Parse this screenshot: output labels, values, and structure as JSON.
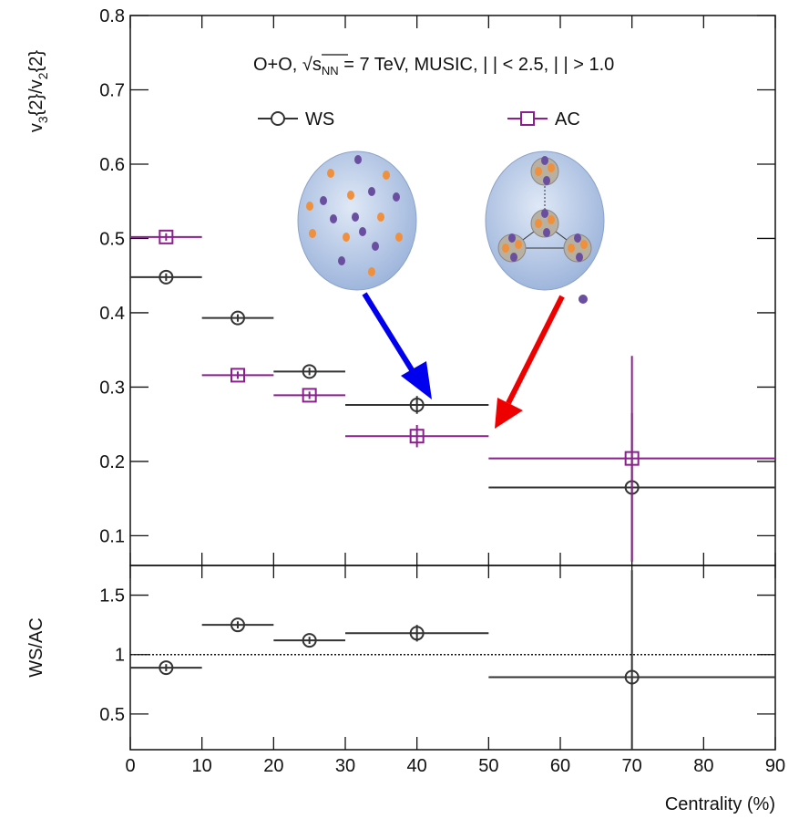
{
  "chart_data": [
    {
      "type": "scatter",
      "ylabel_parts": [
        {
          "text": "v"
        },
        {
          "text": "3",
          "sub": true
        },
        {
          "text": "{2}/v"
        },
        {
          "text": "2",
          "sub": true
        },
        {
          "text": "{2}"
        }
      ],
      "annotation": {
        "before": "O+O, √",
        "s": "s",
        "sub": "NN",
        "after": " = 7 TeV, MUSIC, |  | < 2.5, |    | > 1.0"
      },
      "xlim": [
        0,
        90
      ],
      "xticks": [
        0,
        10,
        20,
        30,
        40,
        50,
        60,
        70,
        80,
        90
      ],
      "ylim": [
        0.06,
        0.8
      ],
      "yticks": [
        0.1,
        0.2,
        0.3,
        0.4,
        0.5,
        0.6,
        0.7,
        0.8
      ],
      "x": [
        5,
        15,
        25,
        40,
        70
      ],
      "xerr": [
        5,
        5,
        5,
        10,
        20
      ],
      "series": [
        {
          "name": "WS",
          "color": "#333333",
          "marker": "circle",
          "values": [
            0.448,
            0.393,
            0.321,
            0.276,
            0.165
          ],
          "yerr": [
            0.005,
            0.005,
            0.005,
            0.012,
            0.1
          ]
        },
        {
          "name": "AC",
          "color": "#8b1f8e",
          "marker": "square",
          "values": [
            0.502,
            0.316,
            0.289,
            0.234,
            0.204
          ],
          "yerr": [
            0.005,
            0.005,
            0.005,
            0.015,
            0.138
          ]
        }
      ]
    },
    {
      "type": "scatter",
      "ylabel": "WS/AC",
      "xlabel": "Centrality (%)",
      "xlim": [
        0,
        90
      ],
      "xticks": [
        0,
        10,
        20,
        30,
        40,
        50,
        60,
        70,
        80,
        90
      ],
      "ylim": [
        0.2,
        1.75
      ],
      "yticks": [
        0.5,
        1,
        1.5
      ],
      "reference_line": 1,
      "x": [
        5,
        15,
        25,
        40,
        70
      ],
      "xerr": [
        5,
        5,
        5,
        10,
        20
      ],
      "series": [
        {
          "color": "#333333",
          "marker": "circle",
          "values": [
            0.89,
            1.25,
            1.12,
            1.18,
            0.81
          ],
          "yerr": [
            0.03,
            0.03,
            0.03,
            0.07,
            0.9
          ]
        }
      ]
    }
  ]
}
